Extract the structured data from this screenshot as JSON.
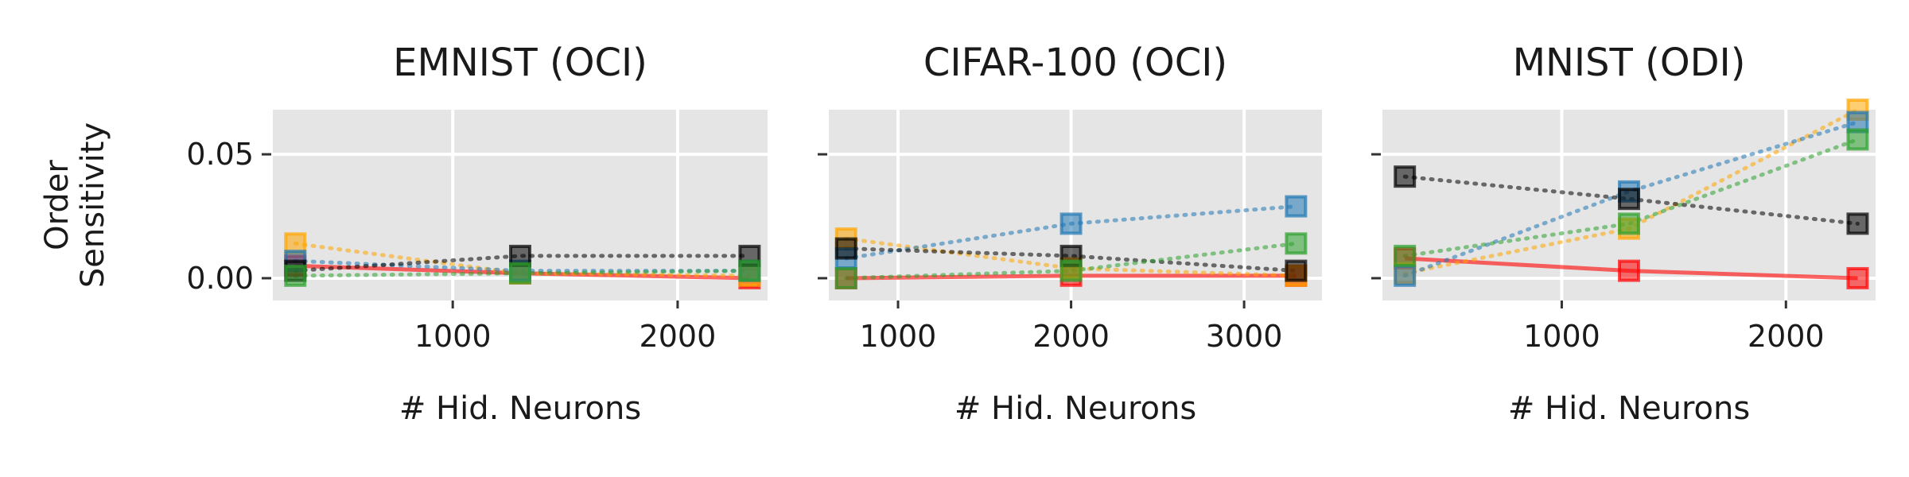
{
  "chart_data": [
    {
      "type": "line",
      "title": "EMNIST (OCI)",
      "xlabel": "# Hid. Neurons",
      "ylabel": "Order Sensitivity",
      "xlim": [
        200,
        2400
      ],
      "ylim": [
        -0.009,
        0.068
      ],
      "xticks": [
        1000,
        2000
      ],
      "yticks": [
        0.0,
        0.05
      ],
      "xtick_labels": [
        "1000",
        "2000"
      ],
      "ytick_labels": [
        "0.00",
        "0.05"
      ],
      "show_ytick_labels": true,
      "grid": true,
      "series": [
        {
          "color": "#ff0000",
          "style": "solid",
          "x": [
            300,
            1300,
            2320
          ],
          "values": [
            0.005,
            0.002,
            0.0
          ]
        },
        {
          "color": "#ffa500",
          "style": "dotted",
          "x": [
            300,
            1300,
            2320
          ],
          "values": [
            0.014,
            0.002,
            0.001
          ]
        },
        {
          "color": "#1f77b4",
          "style": "dotted",
          "x": [
            300,
            1300,
            2320
          ],
          "values": [
            0.007,
            0.003,
            0.003
          ]
        },
        {
          "color": "#000000",
          "style": "dotted",
          "x": [
            300,
            1300,
            2320
          ],
          "values": [
            0.003,
            0.009,
            0.009
          ]
        },
        {
          "color": "#2ca02c",
          "style": "dotted",
          "x": [
            300,
            1300,
            2320
          ],
          "values": [
            0.001,
            0.002,
            0.003
          ]
        }
      ]
    },
    {
      "type": "line",
      "title": "CIFAR-100 (OCI)",
      "xlabel": "# Hid. Neurons",
      "ylabel": "",
      "xlim": [
        600,
        3450
      ],
      "ylim": [
        -0.009,
        0.068
      ],
      "xticks": [
        1000,
        2000,
        3000
      ],
      "yticks": [
        0.0,
        0.05
      ],
      "xtick_labels": [
        "1000",
        "2000",
        "3000"
      ],
      "ytick_labels": [
        "0.00",
        "0.05"
      ],
      "show_ytick_labels": false,
      "grid": true,
      "series": [
        {
          "color": "#ff0000",
          "style": "solid",
          "x": [
            700,
            2000,
            3300
          ],
          "values": [
            0.0,
            0.001,
            0.001
          ]
        },
        {
          "color": "#ffa500",
          "style": "dotted",
          "x": [
            700,
            2000,
            3300
          ],
          "values": [
            0.016,
            0.004,
            0.001
          ]
        },
        {
          "color": "#1f77b4",
          "style": "dotted",
          "x": [
            700,
            2000,
            3300
          ],
          "values": [
            0.008,
            0.022,
            0.029
          ]
        },
        {
          "color": "#000000",
          "style": "dotted",
          "x": [
            700,
            2000,
            3300
          ],
          "values": [
            0.012,
            0.009,
            0.003
          ]
        },
        {
          "color": "#2ca02c",
          "style": "dotted",
          "x": [
            700,
            2000,
            3300
          ],
          "values": [
            0.0,
            0.003,
            0.014
          ]
        }
      ]
    },
    {
      "type": "line",
      "title": "MNIST (ODI)",
      "xlabel": "# Hid. Neurons",
      "ylabel": "",
      "xlim": [
        200,
        2400
      ],
      "ylim": [
        -0.009,
        0.068
      ],
      "xticks": [
        1000,
        2000
      ],
      "yticks": [
        0.0,
        0.05
      ],
      "xtick_labels": [
        "1000",
        "2000"
      ],
      "ytick_labels": [
        "0.00",
        "0.05"
      ],
      "show_ytick_labels": false,
      "grid": true,
      "series": [
        {
          "color": "#ff0000",
          "style": "solid",
          "x": [
            300,
            1300,
            2320
          ],
          "values": [
            0.008,
            0.003,
            0.0
          ]
        },
        {
          "color": "#ffa500",
          "style": "dotted",
          "x": [
            300,
            1300,
            2320
          ],
          "values": [
            0.002,
            0.02,
            0.068
          ]
        },
        {
          "color": "#1f77b4",
          "style": "dotted",
          "x": [
            300,
            1300,
            2320
          ],
          "values": [
            0.001,
            0.035,
            0.063
          ]
        },
        {
          "color": "#000000",
          "style": "dotted",
          "x": [
            300,
            1300,
            2320
          ],
          "values": [
            0.041,
            0.032,
            0.022
          ]
        },
        {
          "color": "#2ca02c",
          "style": "dotted",
          "x": [
            300,
            1300,
            2320
          ],
          "values": [
            0.009,
            0.022,
            0.056
          ]
        }
      ]
    }
  ]
}
